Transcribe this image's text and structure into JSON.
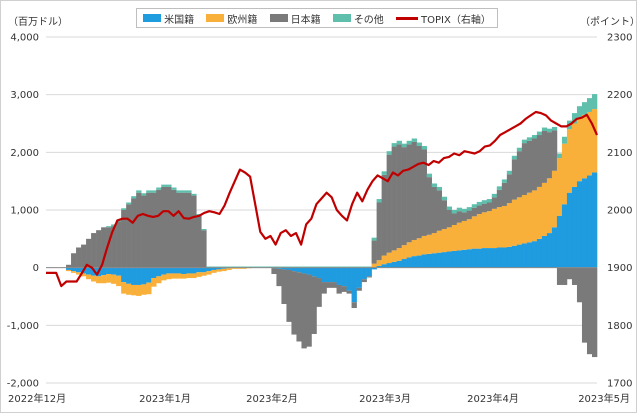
{
  "chart_data": {
    "type": "bar",
    "stacked": true,
    "left_axis": {
      "unit": "（百万ドル）",
      "ylim": [
        -2000,
        4000
      ],
      "ticks": [
        "-2,000",
        "-1,000",
        "0",
        "1,000",
        "2,000",
        "3,000",
        "4,000"
      ]
    },
    "right_axis": {
      "unit": "（ポイント）",
      "ylim": [
        1700,
        2300
      ],
      "ticks": [
        "1700",
        "1800",
        "1900",
        "2000",
        "2100",
        "2200",
        "2300"
      ]
    },
    "x_ticks": [
      "2022年12月",
      "2023年1月",
      "2023年2月",
      "2023年3月",
      "2023年4月",
      "2023年5月"
    ],
    "grid": true,
    "legend_position": "top",
    "colors": {
      "us": "#1f9be0",
      "eu": "#f9b03a",
      "jp": "#7a7a7a",
      "other": "#5fbfad",
      "topix": "#c00000"
    },
    "series": [
      {
        "name": "米国籍",
        "color": "#1f9be0",
        "values": [
          0,
          0,
          0,
          0,
          -40,
          -60,
          -80,
          -100,
          -120,
          -140,
          -150,
          -130,
          -110,
          -120,
          -140,
          -250,
          -280,
          -300,
          -300,
          -290,
          -260,
          -180,
          -150,
          -120,
          -100,
          -100,
          -100,
          -110,
          -100,
          -100,
          -80,
          -80,
          -60,
          -40,
          -30,
          -20,
          -10,
          0,
          0,
          0,
          0,
          0,
          0,
          0,
          0,
          -10,
          -20,
          -30,
          -40,
          -60,
          -80,
          -100,
          -120,
          -150,
          -180,
          -250,
          -250,
          -250,
          -300,
          -320,
          -400,
          -600,
          -350,
          -200,
          -150,
          -30,
          30,
          60,
          80,
          100,
          120,
          150,
          180,
          200,
          210,
          230,
          240,
          250,
          260,
          270,
          280,
          290,
          300,
          310,
          320,
          330,
          330,
          340,
          340,
          340,
          350,
          350,
          360,
          380,
          400,
          420,
          440,
          460,
          500,
          550,
          600,
          700,
          900,
          1100,
          1300,
          1400,
          1500,
          1550,
          1600,
          1650
        ]
      },
      {
        "name": "欧州籍",
        "color": "#f9b03a",
        "values": [
          0,
          0,
          0,
          0,
          -20,
          -30,
          -40,
          -50,
          -80,
          -100,
          -120,
          -140,
          -150,
          -160,
          -180,
          -200,
          -190,
          -180,
          -190,
          -180,
          -200,
          -150,
          -120,
          -100,
          -100,
          -90,
          -90,
          -80,
          -80,
          -80,
          -80,
          -60,
          -60,
          -50,
          -40,
          -40,
          -30,
          -20,
          -20,
          -20,
          -10,
          0,
          0,
          0,
          0,
          0,
          0,
          0,
          0,
          0,
          0,
          0,
          0,
          0,
          0,
          0,
          0,
          0,
          0,
          0,
          0,
          0,
          0,
          0,
          0,
          70,
          100,
          150,
          180,
          200,
          220,
          240,
          260,
          280,
          300,
          320,
          330,
          350,
          380,
          400,
          420,
          450,
          480,
          500,
          520,
          560,
          600,
          620,
          640,
          680,
          700,
          720,
          760,
          800,
          820,
          840,
          860,
          880,
          900,
          920,
          950,
          980,
          1000,
          1050,
          1100,
          1100,
          1100,
          1100,
          1100,
          1100
        ]
      },
      {
        "name": "日本籍",
        "color": "#7a7a7a",
        "values": [
          0,
          0,
          0,
          0,
          50,
          250,
          350,
          400,
          500,
          600,
          650,
          700,
          700,
          720,
          800,
          1000,
          1100,
          1200,
          1300,
          1250,
          1300,
          1300,
          1350,
          1400,
          1400,
          1350,
          1300,
          1300,
          1300,
          1250,
          900,
          650,
          0,
          0,
          0,
          0,
          0,
          0,
          0,
          0,
          0,
          0,
          0,
          0,
          0,
          -100,
          -300,
          -600,
          -900,
          -1100,
          -1200,
          -1300,
          -1250,
          -1000,
          -500,
          -200,
          -100,
          -100,
          -150,
          -100,
          -50,
          -100,
          -50,
          -50,
          -20,
          400,
          1000,
          1400,
          1700,
          1800,
          1800,
          1700,
          1700,
          1700,
          1600,
          1500,
          1000,
          800,
          700,
          500,
          300,
          200,
          200,
          150,
          150,
          150,
          150,
          150,
          150,
          200,
          300,
          400,
          500,
          700,
          800,
          900,
          900,
          900,
          900,
          900,
          800,
          700,
          -300,
          -300,
          -200,
          -300,
          -600,
          -1300,
          -1500,
          -1550
        ]
      },
      {
        "name": "その他",
        "color": "#5fbfad",
        "values": [
          0,
          0,
          0,
          0,
          0,
          0,
          0,
          0,
          0,
          0,
          0,
          0,
          20,
          30,
          30,
          30,
          30,
          40,
          40,
          40,
          40,
          40,
          40,
          40,
          40,
          40,
          40,
          40,
          40,
          30,
          30,
          20,
          20,
          20,
          20,
          20,
          20,
          20,
          20,
          20,
          20,
          20,
          20,
          20,
          20,
          20,
          20,
          20,
          20,
          20,
          20,
          20,
          20,
          20,
          20,
          20,
          20,
          20,
          20,
          20,
          20,
          20,
          20,
          20,
          20,
          50,
          60,
          60,
          60,
          60,
          60,
          60,
          60,
          60,
          60,
          60,
          60,
          60,
          60,
          60,
          60,
          60,
          60,
          60,
          60,
          60,
          60,
          60,
          60,
          60,
          60,
          60,
          60,
          60,
          60,
          60,
          60,
          60,
          60,
          60,
          60,
          60,
          80,
          120,
          150,
          180,
          200,
          220,
          240,
          260
        ]
      },
      {
        "name": "TOPIX（右軸）",
        "color": "#c00000",
        "type": "line",
        "axis": "right",
        "values": [
          1891,
          1891,
          1891,
          1868,
          1876,
          1876,
          1876,
          1890,
          1905,
          1900,
          1888,
          1905,
          1935,
          1962,
          1982,
          1985,
          1985,
          1978,
          1990,
          1993,
          1990,
          1988,
          1990,
          1998,
          1998,
          1990,
          1998,
          1986,
          1985,
          1988,
          1990,
          1995,
          1998,
          1996,
          1993,
          2008,
          2030,
          2050,
          2070,
          2065,
          2058,
          2010,
          1962,
          1950,
          1955,
          1940,
          1960,
          1965,
          1955,
          1960,
          1940,
          1975,
          1985,
          2010,
          2020,
          2030,
          2022,
          2000,
          1990,
          1982,
          2010,
          2030,
          2015,
          2035,
          2050,
          2060,
          2055,
          2050,
          2065,
          2060,
          2068,
          2070,
          2075,
          2080,
          2082,
          2078,
          2085,
          2082,
          2090,
          2092,
          2098,
          2095,
          2102,
          2100,
          2098,
          2102,
          2110,
          2112,
          2120,
          2130,
          2135,
          2140,
          2145,
          2150,
          2158,
          2164,
          2170,
          2168,
          2164,
          2155,
          2150,
          2145,
          2145,
          2150,
          2158,
          2160,
          2165,
          2150,
          2130
        ]
      }
    ]
  }
}
